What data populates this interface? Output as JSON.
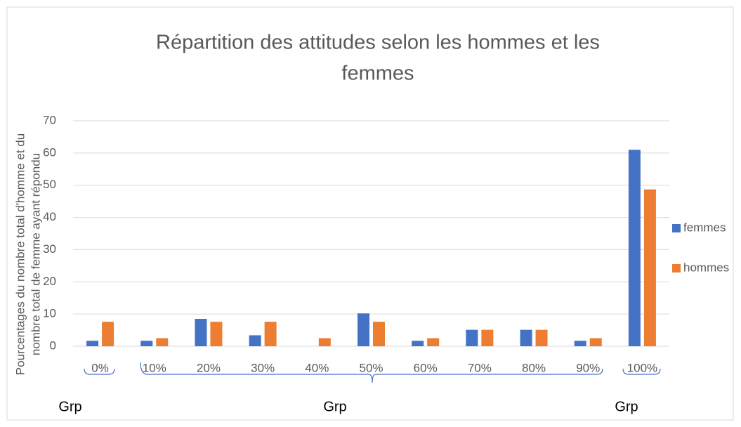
{
  "chart_data": {
    "type": "bar",
    "title": [
      "Répartition des attitudes selon les hommes et les",
      "femmes"
    ],
    "y_label": [
      "Pourcentages du nombre total d'homme et du",
      "nombre total de femme ayant répondu"
    ],
    "categories": [
      "0%",
      "10%",
      "20%",
      "30%",
      "40%",
      "50%",
      "60%",
      "70%",
      "80%",
      "90%",
      "100%"
    ],
    "groups": [
      "Grp",
      "Grp",
      "Grp"
    ],
    "series": [
      {
        "name": "femmes",
        "color": "#4472c4",
        "values": [
          1.7,
          1.7,
          8.5,
          3.4,
          0,
          10.2,
          1.7,
          5.1,
          5.1,
          1.7,
          61
        ]
      },
      {
        "name": "hommes",
        "color": "#ed7d31",
        "values": [
          7.6,
          2.5,
          7.6,
          7.6,
          2.5,
          7.6,
          2.5,
          5.1,
          5.1,
          2.5,
          48.7
        ]
      }
    ],
    "ylim": [
      0,
      70
    ],
    "yticks": [
      0,
      10,
      20,
      30,
      40,
      50,
      60,
      70
    ],
    "grid": true,
    "legend": "right"
  }
}
